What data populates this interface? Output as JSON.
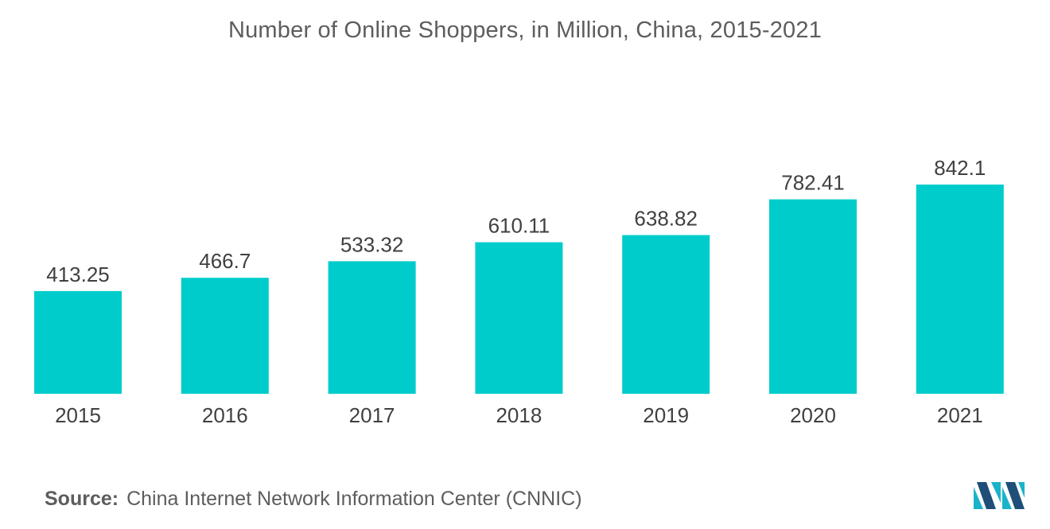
{
  "title": "Number of Online Shoppers, in Million, China, 2015-2021",
  "source": {
    "label": "Source:",
    "text": "China Internet Network Information Center (CNNIC)"
  },
  "logo": {
    "icon": "mordor-intelligence-logo",
    "colors": [
      "#1f4e79",
      "#1bb3c9"
    ]
  },
  "colors": {
    "bar": "#00cccc",
    "text": "#5d5d5d",
    "value_label": "#404040"
  },
  "chart_data": {
    "type": "bar",
    "title": "Number of Online Shoppers, in Million, China, 2015-2021",
    "categories": [
      "2015",
      "2016",
      "2017",
      "2018",
      "2019",
      "2020",
      "2021"
    ],
    "values": [
      413.25,
      466.7,
      533.32,
      610.11,
      638.82,
      782.41,
      842.1
    ],
    "value_labels": [
      "413.25",
      "466.7",
      "533.32",
      "610.11",
      "638.82",
      "782.41",
      "842.1"
    ],
    "xlabel": "",
    "ylabel": "",
    "ylim": [
      0,
      842.1
    ],
    "grid": false,
    "legend": "none",
    "axis_line": false
  }
}
